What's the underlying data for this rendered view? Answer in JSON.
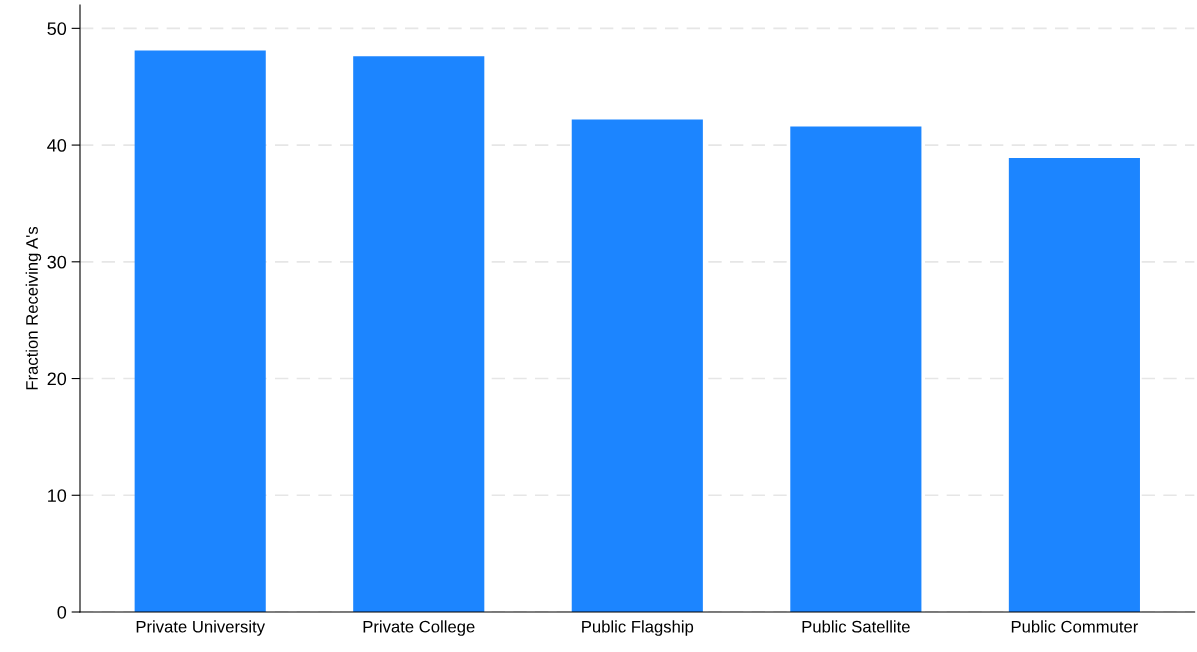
{
  "chart_data": {
    "type": "bar",
    "ylabel": "Fraction Receiving A's",
    "categories": [
      "Private University",
      "Private College",
      "Public Flagship",
      "Public Satellite",
      "Public Commuter"
    ],
    "values": [
      48.1,
      47.6,
      42.2,
      41.6,
      38.9
    ],
    "color": "#1c85ff",
    "ylim": [
      0,
      52
    ],
    "yticks": [
      0,
      10,
      20,
      30,
      40,
      50
    ],
    "grid": "y"
  }
}
